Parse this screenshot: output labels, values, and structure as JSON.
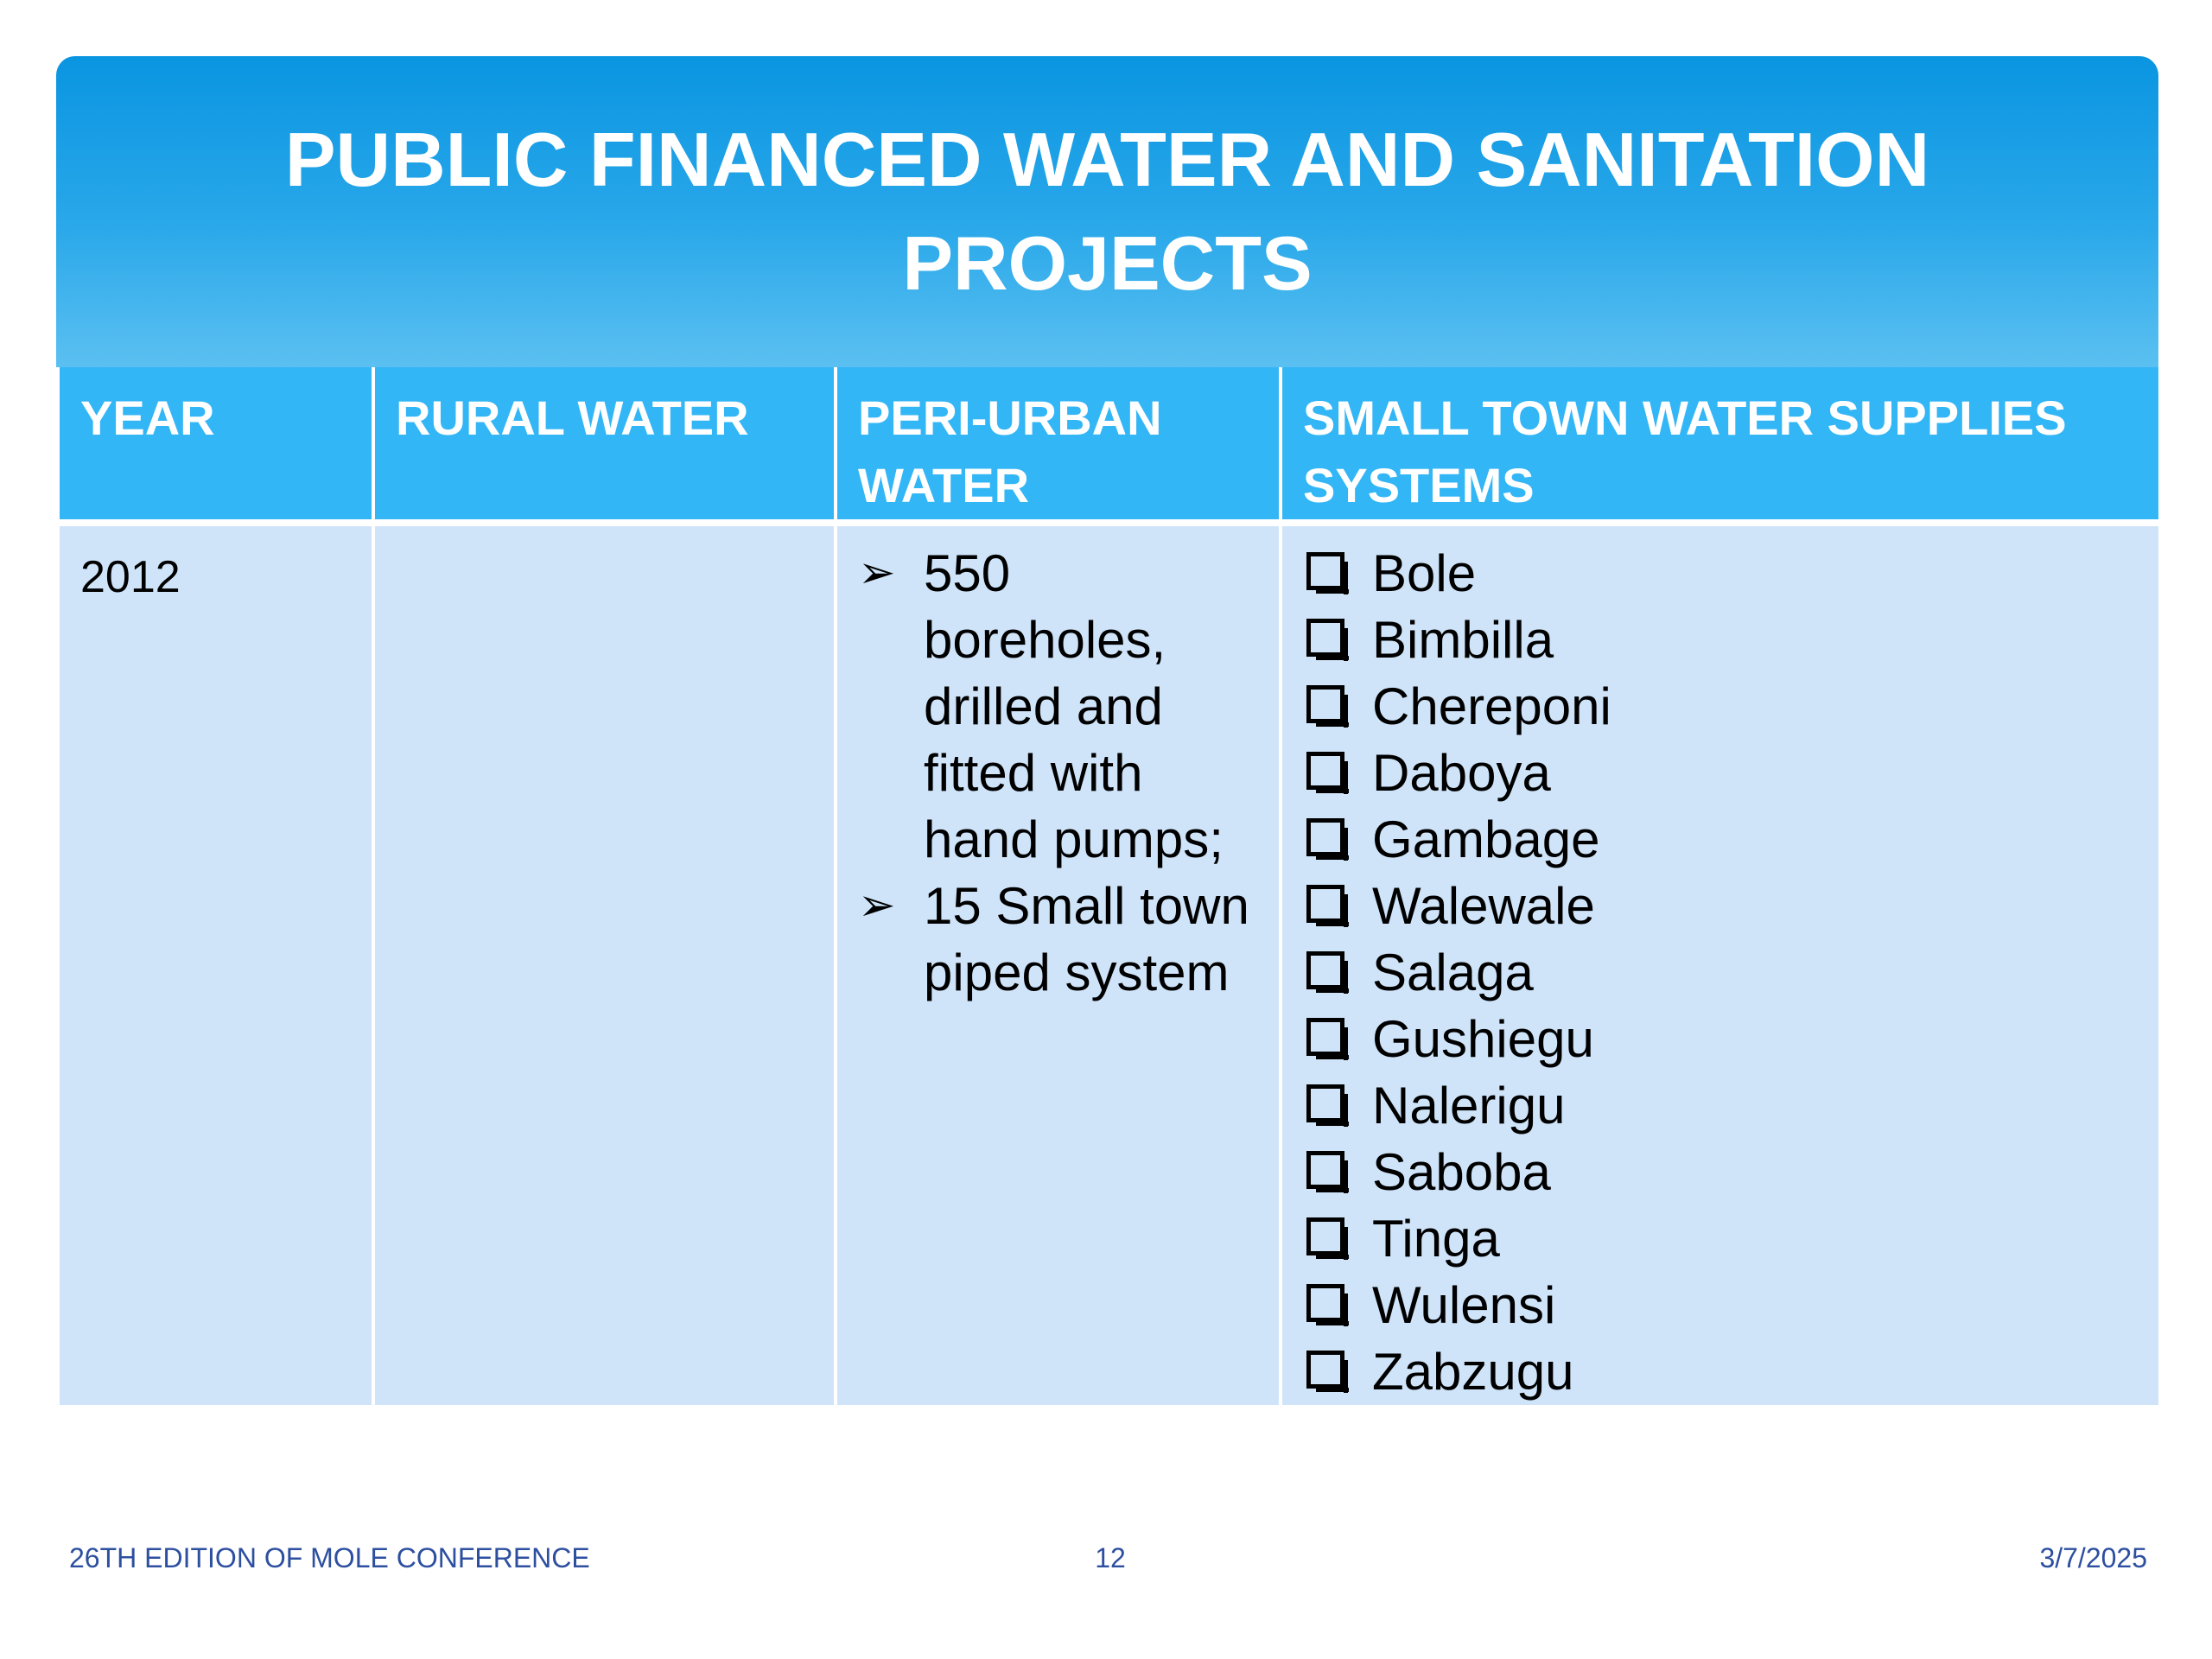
{
  "title": "PUBLIC FINANCED WATER AND SANITATION PROJECTS",
  "colors": {
    "title_band": "#0a95e1",
    "header_row": "#33b6f6",
    "body_row": "#cfe4f9",
    "footer_text": "#2d4fa0"
  },
  "table": {
    "headers": [
      "YEAR",
      "RURAL WATER",
      "PERI-URBAN WATER",
      "SMALL TOWN WATER  SUPPLIES SYSTEMS"
    ],
    "rows": [
      {
        "year": "2012",
        "rural_water": "",
        "peri_urban_water": [
          "550 boreholes, drilled and fitted with hand pumps;",
          "15 Small town piped system"
        ],
        "small_town_water": [
          "Bole",
          "Bimbilla",
          "Chereponi",
          "Daboya",
          "Gambage",
          "Walewale",
          "Salaga",
          "Gushiegu",
          "Nalerigu",
          "Saboba",
          "Tinga",
          "Wulensi",
          "Zabzugu"
        ]
      }
    ],
    "peri_urban_bullet_icon": "arrow-bullet-icon",
    "small_town_bullet_icon": "checkbox-bullet-icon"
  },
  "footer": {
    "left": "26TH EDITION OF MOLE CONFERENCE",
    "page_number": "12",
    "date": "3/7/2025"
  }
}
